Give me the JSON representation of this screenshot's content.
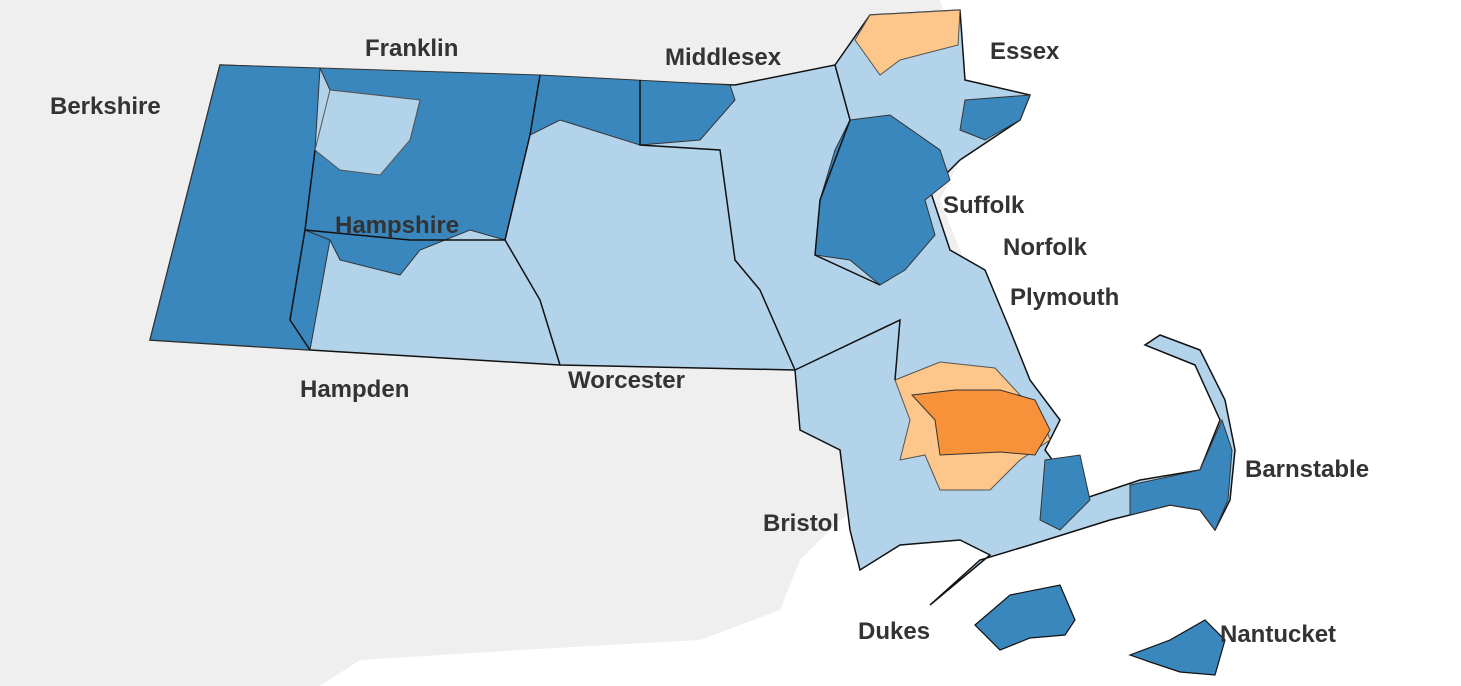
{
  "map": {
    "colors": {
      "land_background": "#efefef",
      "water": "#ffffff",
      "dark_blue": "#3a87be",
      "light_blue": "#b3d3ea",
      "light_orange": "#fdc68a",
      "orange": "#f7923a",
      "town_border": "#555555",
      "county_border": "#111111"
    },
    "counties": [
      {
        "name": "Berkshire"
      },
      {
        "name": "Franklin"
      },
      {
        "name": "Middlesex"
      },
      {
        "name": "Essex"
      },
      {
        "name": "Hampshire"
      },
      {
        "name": "Suffolk"
      },
      {
        "name": "Norfolk"
      },
      {
        "name": "Plymouth"
      },
      {
        "name": "Hampden"
      },
      {
        "name": "Worcester"
      },
      {
        "name": "Barnstable"
      },
      {
        "name": "Bristol"
      },
      {
        "name": "Dukes"
      },
      {
        "name": "Nantucket"
      }
    ]
  }
}
